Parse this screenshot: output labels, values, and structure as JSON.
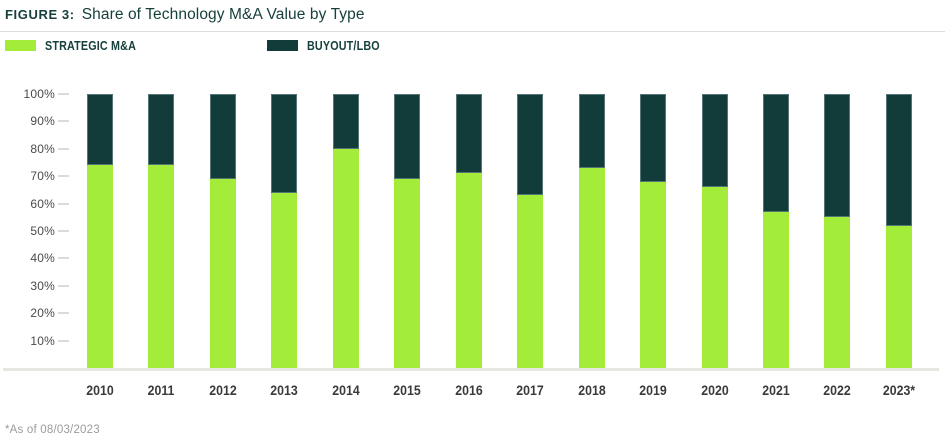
{
  "figure": {
    "label": "FIGURE 3:",
    "title": "Share of Technology M&A Value by Type",
    "footnote": "*As of 08/03/2023"
  },
  "legend": [
    {
      "label": "STRATEGIC M&A",
      "color": "#a4ec3a"
    },
    {
      "label": "BUYOUT/LBO",
      "color": "#123c3a"
    }
  ],
  "chart_data": {
    "type": "bar",
    "stacked": true,
    "title": "Share of Technology M&A Value by Type",
    "categories": [
      "2010",
      "2011",
      "2012",
      "2013",
      "2014",
      "2015",
      "2016",
      "2017",
      "2018",
      "2019",
      "2020",
      "2021",
      "2022",
      "2023*"
    ],
    "series": [
      {
        "name": "Strategic M&A",
        "color": "#a4ec3a",
        "values": [
          74,
          74,
          69,
          64,
          80,
          69,
          71,
          63,
          73,
          68,
          66,
          57,
          55,
          52
        ]
      },
      {
        "name": "Buyout/LBO",
        "color": "#123c3a",
        "values": [
          26,
          26,
          31,
          36,
          20,
          31,
          29,
          37,
          27,
          32,
          34,
          43,
          45,
          48
        ]
      }
    ],
    "unit": "%",
    "ylim": [
      0,
      100
    ],
    "yticks": [
      "100%",
      "90%",
      "80%",
      "70%",
      "60%",
      "50%",
      "40%",
      "30%",
      "20%",
      "10%"
    ],
    "grid": false,
    "legend_position": "top"
  },
  "colors": {
    "strategic": "#a4ec3a",
    "buyout": "#123c3a",
    "title_text": "#17403d",
    "axis_text": "#4a4a4a",
    "year_text": "#3a3a3a",
    "footnote_text": "#9b9b9b",
    "baseline": "#e8e6e1"
  }
}
